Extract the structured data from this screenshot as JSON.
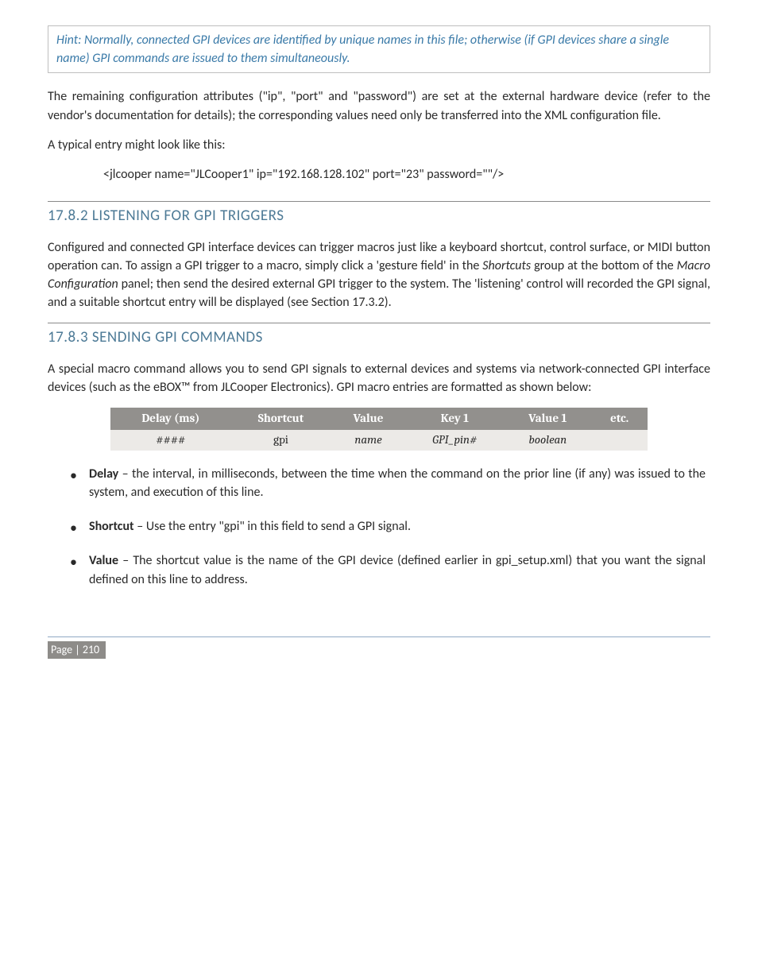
{
  "hint": "Hint: Normally, connected GPI devices are identified by unique names in this file; otherwise (if GPI devices share a single name) GPI commands are issued to them simultaneously.",
  "para_remaining": "The remaining configuration attributes (\"ip\", \"port\" and \"password\") are set at the external hardware device (refer to the vendor's documentation for details); the corresponding values need only be transferred into the XML configuration file.",
  "para_typical": "A typical entry might look like this:",
  "code_example": "<jlcooper  name=\"JLCooper1\" ip=\"192.168.128.102\" port=\"23\" password=\"\"/>",
  "sec_listening": {
    "num": "17.8.2",
    "title": "LISTENING FOR GPI TRIGGERS",
    "body_pre": "Configured and connected GPI interface devices can trigger macros just like a keyboard shortcut, control surface, or MIDI button operation can.  To assign a GPI trigger to a macro, simply click a 'gesture field' in the ",
    "body_i1": "Shortcuts",
    "body_mid": " group at the bottom of the ",
    "body_i2": "Macro Configuration",
    "body_post": " panel; then send the desired external GPI trigger to the system.  The 'listening' control will recorded the GPI signal, and a suitable shortcut entry will be displayed (see Section 17.3.2)."
  },
  "sec_sending": {
    "num": "17.8.3",
    "title": "SENDING GPI COMMANDS",
    "intro": "A special macro command allows you to send GPI signals to external devices and systems via network-connected GPI interface devices (such as the eBOX™ from JLCooper Electronics).   GPI macro entries are formatted as shown below:"
  },
  "table": {
    "headers": [
      "Delay (ms)",
      "Shortcut",
      "Value",
      "Key 1",
      "Value 1",
      "etc."
    ],
    "row": [
      "####",
      "gpi",
      "name",
      "GPI_pin#",
      "boolean",
      ""
    ]
  },
  "bullets": {
    "delay": {
      "label": "Delay",
      "text": " – the interval, in milliseconds, between the time when the command on the prior line (if any) was issued to the system, and execution of this line."
    },
    "shortcut": {
      "label": "Shortcut",
      "text": " – Use the entry \"gpi\" in this field to send a GPI signal."
    },
    "value": {
      "label": "Value",
      "text": " – The shortcut value is the name of the GPI device (defined earlier in gpi_setup.xml) that you want the signal defined on this line to address."
    }
  },
  "footer": {
    "page_label": "Page | 210"
  }
}
